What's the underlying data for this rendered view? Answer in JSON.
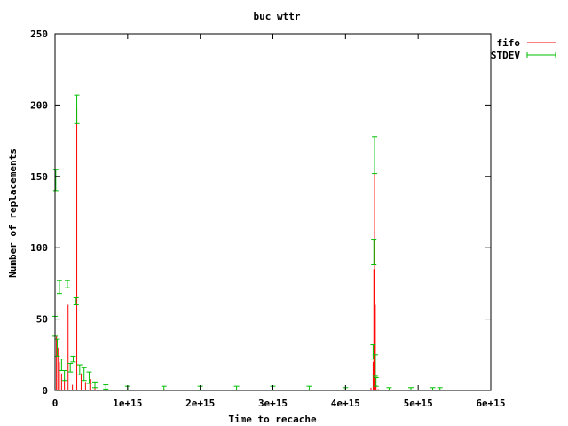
{
  "chart_data": {
    "type": "line",
    "title": "buc wttr",
    "xlabel": "Time to recache",
    "ylabel": "Number of replacements",
    "xlim": [
      0,
      6000000000000000.0
    ],
    "ylim": [
      0,
      250
    ],
    "x_ticks": [
      {
        "v": 0,
        "label": "0"
      },
      {
        "v": 1000000000000000.0,
        "label": "1e+15"
      },
      {
        "v": 2000000000000000.0,
        "label": "2e+15"
      },
      {
        "v": 3000000000000000.0,
        "label": "3e+15"
      },
      {
        "v": 4000000000000000.0,
        "label": "4e+15"
      },
      {
        "v": 5000000000000000.0,
        "label": "5e+15"
      },
      {
        "v": 6000000000000000.0,
        "label": "6e+15"
      }
    ],
    "y_ticks": [
      {
        "v": 0,
        "label": "0"
      },
      {
        "v": 50,
        "label": "50"
      },
      {
        "v": 100,
        "label": "100"
      },
      {
        "v": 150,
        "label": "150"
      },
      {
        "v": 200,
        "label": "200"
      },
      {
        "v": 250,
        "label": "250"
      }
    ],
    "legend_position": "top-right outside plot",
    "grid": false,
    "series": [
      {
        "name": "fifo",
        "color": "#ff0000",
        "style": "impulses",
        "x": [
          0.0,
          20000000000000.0,
          40000000000000.0,
          60000000000000.0,
          90000000000000.0,
          130000000000000.0,
          180000000000000.0,
          240000000000000.0,
          300000000000000.0,
          360000000000000.0,
          420000000000000.0,
          480000000000000.0,
          550000000000000.0,
          700000000000000.0,
          1000000000000000.0,
          1500000000000000.0,
          2000000000000000.0,
          2500000000000000.0,
          3000000000000000.0,
          3500000000000000.0,
          4000000000000000.0,
          4350000000000000.0,
          4380000000000000.0,
          4390000000000000.0,
          4400000000000000.0,
          4410000000000000.0,
          4420000000000000.0,
          4450000000000000.0,
          4600000000000000.0,
          4900000000000000.0,
          5200000000000000.0,
          5300000000000000.0
        ],
        "y": [
          45,
          38,
          30,
          20,
          12,
          8,
          60,
          4,
          198,
          12,
          6,
          8,
          3,
          1,
          1,
          1,
          1,
          1,
          1,
          1,
          1,
          2,
          20,
          85,
          152,
          60,
          4,
          1,
          1,
          1,
          1,
          1
        ]
      },
      {
        "name": "STDEV",
        "color": "#00c000",
        "style": "yerrorbars",
        "points": [
          {
            "x": 0.0,
            "y": 45,
            "lo": 38,
            "hi": 52
          },
          {
            "x": 10000000000000.0,
            "y": 148,
            "lo": 140,
            "hi": 155
          },
          {
            "x": 30000000000000.0,
            "y": 30,
            "lo": 24,
            "hi": 36
          },
          {
            "x": 60000000000000.0,
            "y": 72,
            "lo": 68,
            "hi": 77
          },
          {
            "x": 90000000000000.0,
            "y": 18,
            "lo": 14,
            "hi": 22
          },
          {
            "x": 130000000000000.0,
            "y": 10,
            "lo": 7,
            "hi": 14
          },
          {
            "x": 170000000000000.0,
            "y": 74,
            "lo": 72,
            "hi": 77
          },
          {
            "x": 210000000000000.0,
            "y": 16,
            "lo": 13,
            "hi": 19
          },
          {
            "x": 250000000000000.0,
            "y": 22,
            "lo": 20,
            "hi": 24
          },
          {
            "x": 290000000000000.0,
            "y": 62,
            "lo": 60,
            "hi": 65
          },
          {
            "x": 300000000000000.0,
            "y": 197,
            "lo": 187,
            "hi": 207
          },
          {
            "x": 340000000000000.0,
            "y": 14,
            "lo": 11,
            "hi": 18
          },
          {
            "x": 400000000000000.0,
            "y": 10,
            "lo": 7,
            "hi": 16
          },
          {
            "x": 470000000000000.0,
            "y": 8,
            "lo": 5,
            "hi": 13
          },
          {
            "x": 550000000000000.0,
            "y": 4,
            "lo": 2,
            "hi": 6
          },
          {
            "x": 700000000000000.0,
            "y": 2,
            "lo": 1,
            "hi": 4
          },
          {
            "x": 1000000000000000.0,
            "y": 1,
            "lo": 0,
            "hi": 3
          },
          {
            "x": 1500000000000000.0,
            "y": 1,
            "lo": 0,
            "hi": 3
          },
          {
            "x": 2000000000000000.0,
            "y": 1,
            "lo": 0,
            "hi": 3
          },
          {
            "x": 2500000000000000.0,
            "y": 1,
            "lo": 0,
            "hi": 3
          },
          {
            "x": 3000000000000000.0,
            "y": 1,
            "lo": 0,
            "hi": 3
          },
          {
            "x": 3500000000000000.0,
            "y": 1,
            "lo": 0,
            "hi": 3
          },
          {
            "x": 4000000000000000.0,
            "y": 1,
            "lo": 0,
            "hi": 2
          },
          {
            "x": 4380000000000000.0,
            "y": 25,
            "lo": 22,
            "hi": 32
          },
          {
            "x": 4390000000000000.0,
            "y": 95,
            "lo": 88,
            "hi": 106
          },
          {
            "x": 4400000000000000.0,
            "y": 165,
            "lo": 152,
            "hi": 178
          },
          {
            "x": 4410000000000000.0,
            "y": 15,
            "lo": 10,
            "hi": 25
          },
          {
            "x": 4420000000000000.0,
            "y": 6,
            "lo": 3,
            "hi": 9
          },
          {
            "x": 4600000000000000.0,
            "y": 1,
            "lo": 0,
            "hi": 2
          },
          {
            "x": 4900000000000000.0,
            "y": 1,
            "lo": 0,
            "hi": 2
          },
          {
            "x": 5200000000000000.0,
            "y": 1,
            "lo": 0,
            "hi": 2
          },
          {
            "x": 5300000000000000.0,
            "y": 1,
            "lo": 0,
            "hi": 2
          }
        ]
      }
    ]
  }
}
